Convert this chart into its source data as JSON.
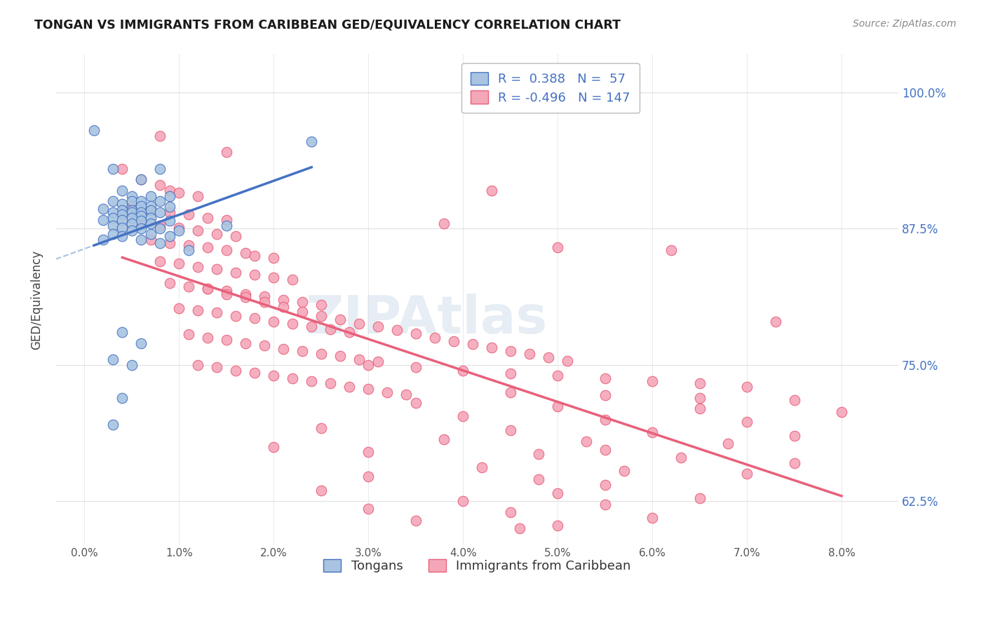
{
  "title": "TONGAN VS IMMIGRANTS FROM CARIBBEAN GED/EQUIVALENCY CORRELATION CHART",
  "source": "Source: ZipAtlas.com",
  "ylabel": "GED/Equivalency",
  "legend_blue": {
    "R": "0.388",
    "N": "57",
    "label": "Tongans"
  },
  "legend_pink": {
    "R": "-0.496",
    "N": "147",
    "label": "Immigrants from Caribbean"
  },
  "blue_fill_color": "#a8c4e0",
  "pink_fill_color": "#f4a7b9",
  "blue_edge_color": "#4472c4",
  "pink_edge_color": "#e8607a",
  "blue_line_color": "#4472c4",
  "pink_line_color": "#e8607a",
  "grid_color": "#e0e0e0",
  "blue_scatter": [
    [
      0.001,
      0.965
    ],
    [
      0.003,
      0.93
    ],
    [
      0.008,
      0.93
    ],
    [
      0.006,
      0.92
    ],
    [
      0.004,
      0.91
    ],
    [
      0.005,
      0.905
    ],
    [
      0.007,
      0.905
    ],
    [
      0.009,
      0.905
    ],
    [
      0.003,
      0.9
    ],
    [
      0.005,
      0.9
    ],
    [
      0.006,
      0.9
    ],
    [
      0.008,
      0.9
    ],
    [
      0.004,
      0.898
    ],
    [
      0.006,
      0.896
    ],
    [
      0.007,
      0.896
    ],
    [
      0.009,
      0.895
    ],
    [
      0.002,
      0.893
    ],
    [
      0.004,
      0.892
    ],
    [
      0.005,
      0.892
    ],
    [
      0.007,
      0.892
    ],
    [
      0.003,
      0.89
    ],
    [
      0.005,
      0.89
    ],
    [
      0.006,
      0.89
    ],
    [
      0.008,
      0.89
    ],
    [
      0.004,
      0.888
    ],
    [
      0.006,
      0.887
    ],
    [
      0.003,
      0.885
    ],
    [
      0.005,
      0.885
    ],
    [
      0.007,
      0.885
    ],
    [
      0.002,
      0.883
    ],
    [
      0.004,
      0.883
    ],
    [
      0.006,
      0.882
    ],
    [
      0.009,
      0.882
    ],
    [
      0.005,
      0.88
    ],
    [
      0.007,
      0.88
    ],
    [
      0.003,
      0.878
    ],
    [
      0.015,
      0.878
    ],
    [
      0.004,
      0.876
    ],
    [
      0.006,
      0.875
    ],
    [
      0.008,
      0.875
    ],
    [
      0.005,
      0.873
    ],
    [
      0.01,
      0.873
    ],
    [
      0.003,
      0.87
    ],
    [
      0.007,
      0.87
    ],
    [
      0.004,
      0.868
    ],
    [
      0.009,
      0.868
    ],
    [
      0.002,
      0.865
    ],
    [
      0.006,
      0.865
    ],
    [
      0.008,
      0.862
    ],
    [
      0.011,
      0.855
    ],
    [
      0.004,
      0.78
    ],
    [
      0.006,
      0.77
    ],
    [
      0.003,
      0.755
    ],
    [
      0.005,
      0.75
    ],
    [
      0.004,
      0.72
    ],
    [
      0.003,
      0.695
    ],
    [
      0.024,
      0.955
    ]
  ],
  "pink_scatter": [
    [
      0.004,
      0.93
    ],
    [
      0.006,
      0.92
    ],
    [
      0.008,
      0.915
    ],
    [
      0.009,
      0.91
    ],
    [
      0.01,
      0.908
    ],
    [
      0.012,
      0.905
    ],
    [
      0.005,
      0.895
    ],
    [
      0.007,
      0.892
    ],
    [
      0.009,
      0.89
    ],
    [
      0.011,
      0.888
    ],
    [
      0.013,
      0.885
    ],
    [
      0.015,
      0.883
    ],
    [
      0.006,
      0.88
    ],
    [
      0.008,
      0.878
    ],
    [
      0.01,
      0.876
    ],
    [
      0.012,
      0.873
    ],
    [
      0.014,
      0.87
    ],
    [
      0.016,
      0.868
    ],
    [
      0.007,
      0.865
    ],
    [
      0.009,
      0.862
    ],
    [
      0.011,
      0.86
    ],
    [
      0.013,
      0.858
    ],
    [
      0.015,
      0.855
    ],
    [
      0.017,
      0.853
    ],
    [
      0.018,
      0.85
    ],
    [
      0.02,
      0.848
    ],
    [
      0.008,
      0.845
    ],
    [
      0.01,
      0.843
    ],
    [
      0.012,
      0.84
    ],
    [
      0.014,
      0.838
    ],
    [
      0.016,
      0.835
    ],
    [
      0.018,
      0.833
    ],
    [
      0.02,
      0.83
    ],
    [
      0.022,
      0.828
    ],
    [
      0.009,
      0.825
    ],
    [
      0.011,
      0.822
    ],
    [
      0.013,
      0.82
    ],
    [
      0.015,
      0.818
    ],
    [
      0.017,
      0.815
    ],
    [
      0.019,
      0.813
    ],
    [
      0.021,
      0.81
    ],
    [
      0.023,
      0.808
    ],
    [
      0.025,
      0.805
    ],
    [
      0.01,
      0.802
    ],
    [
      0.012,
      0.8
    ],
    [
      0.014,
      0.798
    ],
    [
      0.016,
      0.795
    ],
    [
      0.018,
      0.793
    ],
    [
      0.02,
      0.79
    ],
    [
      0.022,
      0.788
    ],
    [
      0.024,
      0.785
    ],
    [
      0.026,
      0.783
    ],
    [
      0.028,
      0.78
    ],
    [
      0.011,
      0.778
    ],
    [
      0.013,
      0.775
    ],
    [
      0.015,
      0.773
    ],
    [
      0.017,
      0.77
    ],
    [
      0.019,
      0.768
    ],
    [
      0.021,
      0.765
    ],
    [
      0.023,
      0.763
    ],
    [
      0.025,
      0.76
    ],
    [
      0.027,
      0.758
    ],
    [
      0.029,
      0.755
    ],
    [
      0.031,
      0.753
    ],
    [
      0.012,
      0.75
    ],
    [
      0.014,
      0.748
    ],
    [
      0.016,
      0.745
    ],
    [
      0.018,
      0.743
    ],
    [
      0.02,
      0.74
    ],
    [
      0.022,
      0.738
    ],
    [
      0.024,
      0.735
    ],
    [
      0.026,
      0.733
    ],
    [
      0.028,
      0.73
    ],
    [
      0.03,
      0.728
    ],
    [
      0.032,
      0.725
    ],
    [
      0.034,
      0.723
    ],
    [
      0.013,
      0.82
    ],
    [
      0.015,
      0.815
    ],
    [
      0.017,
      0.812
    ],
    [
      0.019,
      0.808
    ],
    [
      0.021,
      0.803
    ],
    [
      0.023,
      0.799
    ],
    [
      0.025,
      0.795
    ],
    [
      0.027,
      0.792
    ],
    [
      0.029,
      0.788
    ],
    [
      0.031,
      0.785
    ],
    [
      0.033,
      0.782
    ],
    [
      0.035,
      0.779
    ],
    [
      0.037,
      0.775
    ],
    [
      0.039,
      0.772
    ],
    [
      0.041,
      0.769
    ],
    [
      0.043,
      0.766
    ],
    [
      0.045,
      0.763
    ],
    [
      0.047,
      0.76
    ],
    [
      0.049,
      0.757
    ],
    [
      0.051,
      0.754
    ],
    [
      0.03,
      0.75
    ],
    [
      0.035,
      0.748
    ],
    [
      0.04,
      0.745
    ],
    [
      0.045,
      0.742
    ],
    [
      0.05,
      0.74
    ],
    [
      0.055,
      0.738
    ],
    [
      0.06,
      0.735
    ],
    [
      0.065,
      0.733
    ],
    [
      0.07,
      0.73
    ],
    [
      0.045,
      0.725
    ],
    [
      0.055,
      0.722
    ],
    [
      0.065,
      0.72
    ],
    [
      0.075,
      0.718
    ],
    [
      0.035,
      0.715
    ],
    [
      0.05,
      0.712
    ],
    [
      0.065,
      0.71
    ],
    [
      0.08,
      0.707
    ],
    [
      0.04,
      0.703
    ],
    [
      0.055,
      0.7
    ],
    [
      0.07,
      0.698
    ],
    [
      0.025,
      0.692
    ],
    [
      0.045,
      0.69
    ],
    [
      0.06,
      0.688
    ],
    [
      0.075,
      0.685
    ],
    [
      0.038,
      0.682
    ],
    [
      0.053,
      0.68
    ],
    [
      0.068,
      0.678
    ],
    [
      0.02,
      0.675
    ],
    [
      0.055,
      0.672
    ],
    [
      0.038,
      0.88
    ],
    [
      0.05,
      0.858
    ],
    [
      0.062,
      0.855
    ],
    [
      0.073,
      0.79
    ],
    [
      0.03,
      0.67
    ],
    [
      0.048,
      0.668
    ],
    [
      0.063,
      0.665
    ],
    [
      0.075,
      0.66
    ],
    [
      0.042,
      0.656
    ],
    [
      0.057,
      0.653
    ],
    [
      0.07,
      0.65
    ],
    [
      0.03,
      0.648
    ],
    [
      0.048,
      0.645
    ],
    [
      0.055,
      0.64
    ],
    [
      0.025,
      0.635
    ],
    [
      0.05,
      0.632
    ],
    [
      0.065,
      0.628
    ],
    [
      0.04,
      0.625
    ],
    [
      0.055,
      0.622
    ],
    [
      0.03,
      0.618
    ],
    [
      0.045,
      0.615
    ],
    [
      0.06,
      0.61
    ],
    [
      0.035,
      0.607
    ],
    [
      0.05,
      0.603
    ],
    [
      0.046,
      0.6
    ],
    [
      0.008,
      0.96
    ],
    [
      0.015,
      0.945
    ],
    [
      0.043,
      0.91
    ]
  ],
  "xlim": [
    -0.003,
    0.086
  ],
  "ylim": [
    0.585,
    1.035
  ],
  "ytick_vals": [
    0.625,
    0.75,
    0.875,
    1.0
  ],
  "xtick_vals": [
    0.0,
    0.01,
    0.02,
    0.03,
    0.04,
    0.05,
    0.06,
    0.07,
    0.08
  ],
  "watermark": "ZIPAtlas",
  "background_color": "#ffffff"
}
